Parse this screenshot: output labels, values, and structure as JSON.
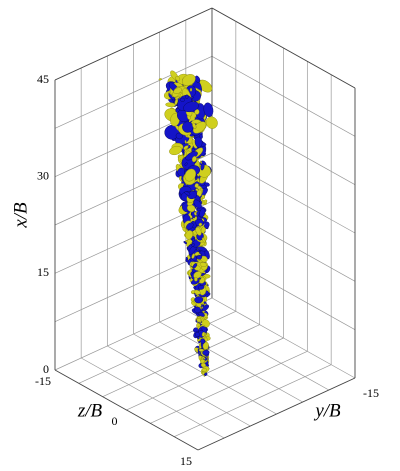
{
  "chart_data": {
    "type": "isosurface3d",
    "vertical_axis": {
      "label": "x/B",
      "lim": [
        0,
        45
      ],
      "ticks": [
        0,
        15,
        30,
        45
      ]
    },
    "left_axis": {
      "label": "z/B",
      "lim": [
        -15,
        15
      ],
      "ticks": [
        -15,
        0,
        15
      ]
    },
    "right_axis": {
      "label": "y/B",
      "lim": [
        -15,
        15
      ],
      "ticks": [
        -15
      ]
    },
    "grid": true
  }
}
